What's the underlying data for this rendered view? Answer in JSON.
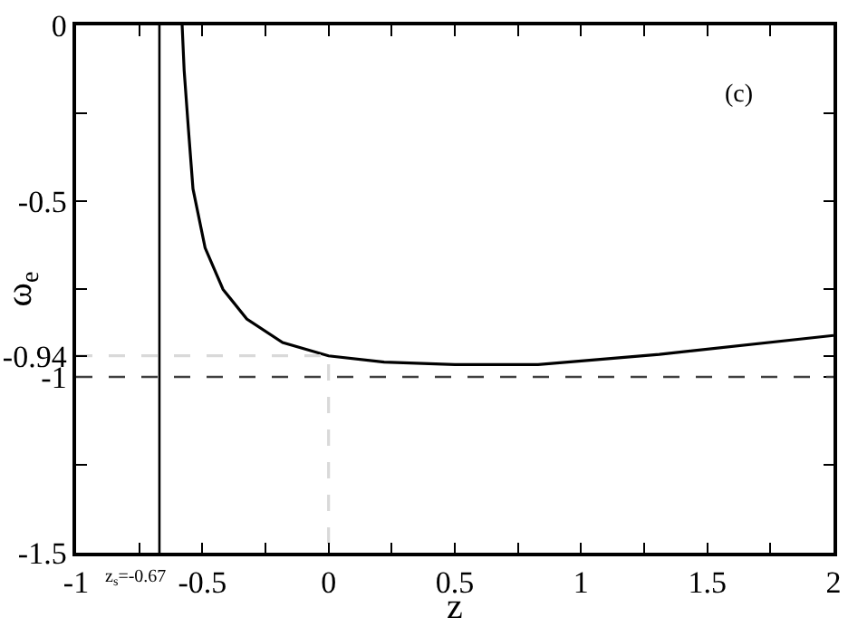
{
  "chart_data": {
    "type": "line",
    "xlabel": "z",
    "ylabel": "ω$_{e}$",
    "annotations": [
      "(c)"
    ],
    "series": [
      {
        "color": "#000000",
        "x": [
          -0.58,
          -0.572,
          -0.555,
          -0.537,
          -0.489,
          -0.418,
          -0.324,
          -0.182,
          0,
          0.22,
          0.5,
          0.83,
          1.31,
          2.0
        ],
        "values": [
          0,
          -0.128,
          -0.296,
          -0.465,
          -0.633,
          -0.751,
          -0.835,
          -0.902,
          -0.94,
          -0.958,
          -0.965,
          -0.965,
          -0.936,
          -0.882
        ]
      },
      {
        "color": "#d9d9d9",
        "line_style": "dashed",
        "x": [
          -1,
          0,
          0
        ],
        "values": [
          -0.94,
          -0.94,
          -1.5
        ]
      }
    ],
    "ref_lines": [
      {
        "axis": "y",
        "value": -1,
        "color": "#404040",
        "line_style": "dashed"
      },
      {
        "axis": "x",
        "value": -0.67,
        "label": "z$_{s}$=-0.67",
        "color": "#000000",
        "line_style": "solid"
      }
    ],
    "xlim": [
      -1,
      2
    ],
    "ylim": [
      -1.5,
      0
    ],
    "xticks": [
      -1,
      {
        "value": -0.75,
        "label": null
      },
      -0.5,
      {
        "value": -0.25,
        "label": null
      },
      0,
      {
        "value": 0.25,
        "label": null
      },
      0.5,
      {
        "value": 0.75,
        "label": null
      },
      1,
      {
        "value": 1.25,
        "label": null
      },
      1.5,
      {
        "value": 1.75,
        "label": null
      },
      2
    ],
    "yticks": [
      0,
      {
        "value": -0.25,
        "label": null
      },
      -0.5,
      {
        "value": -0.75,
        "label": null
      },
      {
        "value": -0.94,
        "label": "-0.94"
      },
      -1,
      {
        "value": -1.25,
        "label": null
      },
      -1.5
    ],
    "marker": "none",
    "line_style": "solid"
  }
}
